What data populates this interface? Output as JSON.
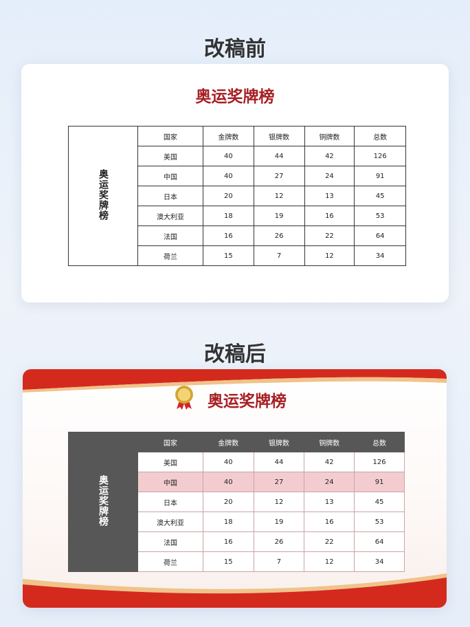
{
  "before": {
    "heading": "改稿前",
    "title": "奥运奖牌榜",
    "side_label": "奥运奖牌榜"
  },
  "after": {
    "heading": "改稿后",
    "title": "奥运奖牌榜",
    "side_label": "奥运奖牌榜",
    "highlight_row": "中国",
    "colors": {
      "title": "#a61f24",
      "header": "#585757",
      "side": "#7b3526",
      "highlight": "#f3ccd0"
    },
    "icon": "gold-medal-icon"
  },
  "table": {
    "headers": [
      "国家",
      "金牌数",
      "银牌数",
      "铜牌数",
      "总数"
    ],
    "rows": [
      [
        "美国",
        "40",
        "44",
        "42",
        "126"
      ],
      [
        "中国",
        "40",
        "27",
        "24",
        "91"
      ],
      [
        "日本",
        "20",
        "12",
        "13",
        "45"
      ],
      [
        "澳大利亚",
        "18",
        "19",
        "16",
        "53"
      ],
      [
        "法国",
        "16",
        "26",
        "22",
        "64"
      ],
      [
        "荷兰",
        "15",
        "7",
        "12",
        "34"
      ]
    ]
  }
}
